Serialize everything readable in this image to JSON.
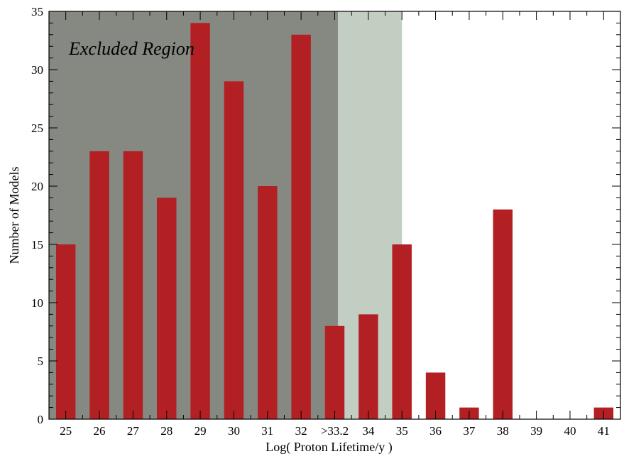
{
  "chart_data": {
    "type": "bar",
    "categories": [
      "25",
      "26",
      "27",
      "28",
      "29",
      "30",
      "31",
      "32",
      ">33.2",
      "34",
      "35",
      "36",
      "37",
      "38",
      "39",
      "40",
      "41"
    ],
    "values": [
      15,
      23,
      23,
      19,
      34,
      29,
      20,
      33,
      8,
      9,
      15,
      4,
      1,
      18,
      0,
      0,
      1
    ],
    "xlabel": "Log( Proton Lifetime/y )",
    "ylabel": "Number of Models",
    "ylim": [
      0,
      35
    ],
    "yticks": [
      0,
      5,
      10,
      15,
      20,
      25,
      30,
      35
    ],
    "grid": false,
    "bar_color": "#b22024",
    "regions": [
      {
        "label": "Excluded Region",
        "from_category": "25",
        "to_category": "33.2",
        "color": "#858982"
      },
      {
        "label": "",
        "from_category": "33.2",
        "to_category": "35",
        "color": "#c3cec3"
      }
    ]
  }
}
